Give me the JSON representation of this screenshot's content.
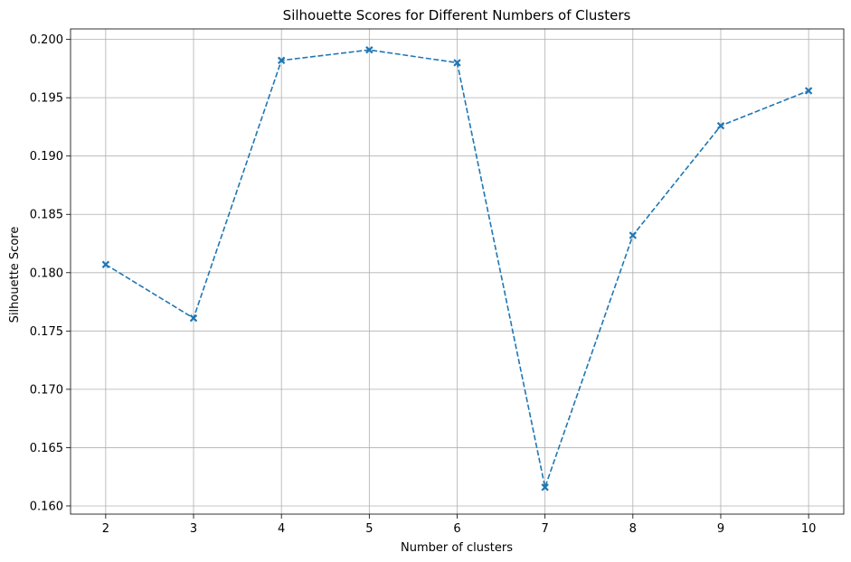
{
  "chart_data": {
    "type": "line",
    "title": "Silhouette Scores for Different Numbers of Clusters",
    "xlabel": "Number of clusters",
    "ylabel": "Silhouette Score",
    "x": [
      2,
      3,
      4,
      5,
      6,
      7,
      8,
      9,
      10
    ],
    "y": [
      0.1807,
      0.1761,
      0.1982,
      0.1991,
      0.198,
      0.1616,
      0.1832,
      0.1926,
      0.1956
    ],
    "xlim": [
      1.6,
      10.4
    ],
    "ylim": [
      0.1593,
      0.2009
    ],
    "xticks": [
      2,
      3,
      4,
      5,
      6,
      7,
      8,
      9,
      10
    ],
    "yticks": [
      0.16,
      0.165,
      0.17,
      0.175,
      0.18,
      0.185,
      0.19,
      0.195,
      0.2
    ],
    "ytick_labels": [
      "0.160",
      "0.165",
      "0.170",
      "0.175",
      "0.180",
      "0.185",
      "0.190",
      "0.195",
      "0.200"
    ],
    "grid": true,
    "line_style": "dashed",
    "marker": "x-filled",
    "color": "#1f77b4"
  }
}
